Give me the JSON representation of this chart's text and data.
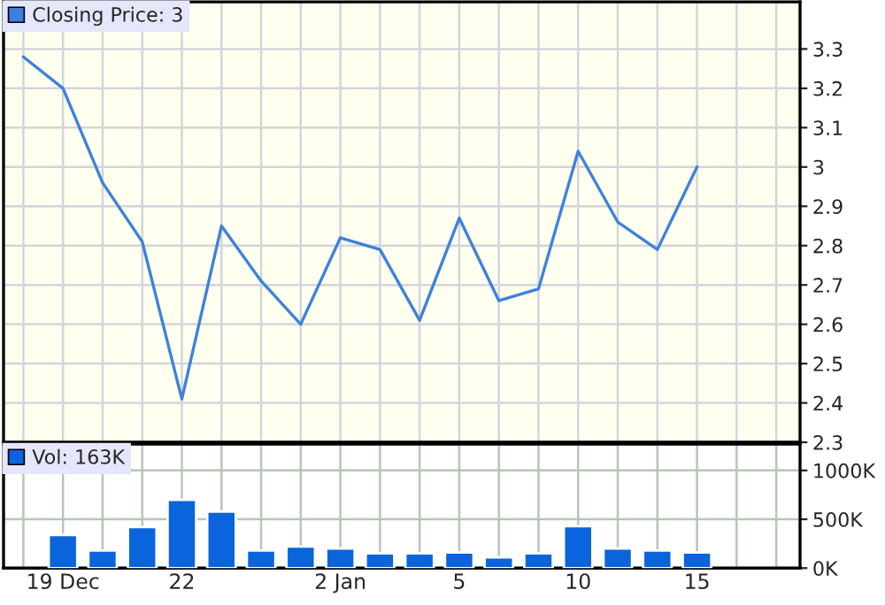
{
  "chart_data": [
    {
      "type": "line",
      "series": [
        {
          "name": "Closing Price: 3",
          "color": "#3c82dc",
          "values": [
            3.28,
            3.2,
            2.96,
            2.81,
            2.41,
            2.85,
            2.71,
            2.6,
            2.82,
            2.79,
            2.61,
            2.87,
            2.66,
            2.69,
            3.04,
            2.86,
            2.79,
            3.0,
            null,
            null
          ]
        }
      ],
      "ylim": [
        2.3,
        3.42
      ],
      "yticks": [
        2.3,
        2.4,
        2.5,
        2.6,
        2.7,
        2.8,
        2.9,
        3,
        3.1,
        3.2,
        3.3
      ],
      "grid": true,
      "legend": "top left",
      "tick_labels": "y",
      "marker": "none",
      "line_style": "solid"
    },
    {
      "type": "bar",
      "categories": [
        null,
        "19 Dec",
        null,
        null,
        "22",
        null,
        null,
        null,
        "2 Jan",
        null,
        null,
        "5",
        null,
        null,
        "10",
        null,
        null,
        "15",
        null,
        null
      ],
      "series": [
        {
          "name": "Vol: 163K",
          "color": "#0a64dc",
          "values": [
            null,
            340,
            180,
            420,
            700,
            580,
            180,
            220,
            200,
            150,
            150,
            160,
            110,
            150,
            430,
            200,
            180,
            160,
            null,
            null
          ]
        }
      ],
      "ylim": [
        0,
        1270
      ],
      "yticks": [
        {
          "value": 0,
          "label": "0K"
        },
        {
          "value": 500,
          "label": "500K"
        },
        {
          "value": 1000,
          "label": "1000K"
        }
      ],
      "grid": true,
      "legend": "top left"
    }
  ]
}
